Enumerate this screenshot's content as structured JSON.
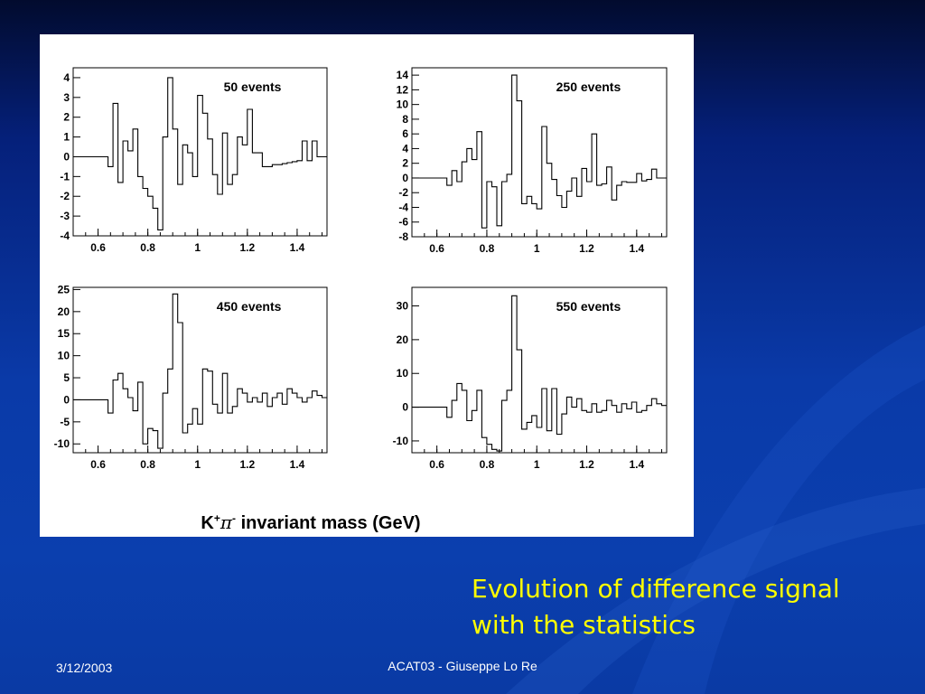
{
  "slide": {
    "caption_line1": "Evolution of difference signal",
    "caption_line2": "with the statistics",
    "footer_date": "3/12/2003",
    "footer_center": "ACAT03 - Giuseppe Lo Re",
    "colors": {
      "background": "#0a3aa8",
      "caption": "#ffff00",
      "footer": "#ffffff",
      "panel": "#ffffff"
    }
  },
  "figure": {
    "xaxis_title": {
      "main": "K",
      "sup1": "+",
      "pi": "π",
      "sup2": "-",
      "rest": " invariant mass (GeV)"
    }
  },
  "chart_data": [
    {
      "type": "line",
      "title": "50 events",
      "xlim": [
        0.5,
        1.52
      ],
      "ylim": [
        -4,
        4.5
      ],
      "xticks": [
        "0.6",
        "0.8",
        "1",
        "1.2",
        "1.4"
      ],
      "yticks": [
        "-4",
        "-3",
        "-2",
        "-1",
        "0",
        "1",
        "2",
        "3",
        "4"
      ],
      "grid": false,
      "x": [
        0.5,
        0.52,
        0.54,
        0.56,
        0.58,
        0.6,
        0.62,
        0.64,
        0.66,
        0.68,
        0.7,
        0.72,
        0.74,
        0.76,
        0.78,
        0.8,
        0.82,
        0.84,
        0.86,
        0.88,
        0.9,
        0.92,
        0.94,
        0.96,
        0.98,
        1.0,
        1.02,
        1.04,
        1.06,
        1.08,
        1.1,
        1.12,
        1.14,
        1.16,
        1.18,
        1.2,
        1.22,
        1.24,
        1.26,
        1.28,
        1.3,
        1.32,
        1.34,
        1.36,
        1.38,
        1.4,
        1.42,
        1.44,
        1.46,
        1.48,
        1.5
      ],
      "values": [
        0,
        0,
        0,
        0,
        0,
        0,
        0,
        -0.5,
        2.7,
        -1.3,
        0.8,
        0.3,
        1.4,
        -1.0,
        -1.6,
        -2.0,
        -2.6,
        -3.7,
        1.0,
        4.0,
        1.4,
        -1.4,
        0.6,
        0.2,
        -1.0,
        3.1,
        2.2,
        0.9,
        -0.9,
        -1.9,
        1.2,
        -1.4,
        -0.9,
        1.0,
        0.6,
        2.4,
        0.2,
        0.2,
        -0.5,
        -0.5,
        -0.4,
        -0.4,
        -0.35,
        -0.3,
        -0.25,
        -0.2,
        0.8,
        -0.2,
        0.8,
        0,
        0
      ]
    },
    {
      "type": "line",
      "title": "250 events",
      "xlim": [
        0.5,
        1.52
      ],
      "ylim": [
        -8,
        15
      ],
      "xticks": [
        "0.6",
        "0.8",
        "1",
        "1.2",
        "1.4"
      ],
      "yticks": [
        "-8",
        "-6",
        "-4",
        "-2",
        "0",
        "2",
        "4",
        "6",
        "8",
        "10",
        "12",
        "14"
      ],
      "grid": false,
      "x": [
        0.5,
        0.52,
        0.54,
        0.56,
        0.58,
        0.6,
        0.62,
        0.64,
        0.66,
        0.68,
        0.7,
        0.72,
        0.74,
        0.76,
        0.78,
        0.8,
        0.82,
        0.84,
        0.86,
        0.88,
        0.9,
        0.92,
        0.94,
        0.96,
        0.98,
        1.0,
        1.02,
        1.04,
        1.06,
        1.08,
        1.1,
        1.12,
        1.14,
        1.16,
        1.18,
        1.2,
        1.22,
        1.24,
        1.26,
        1.28,
        1.3,
        1.32,
        1.34,
        1.36,
        1.38,
        1.4,
        1.42,
        1.44,
        1.46,
        1.48,
        1.5
      ],
      "values": [
        0,
        0,
        0,
        0,
        0,
        0,
        0,
        -1.0,
        1.0,
        -0.5,
        2.2,
        4.0,
        2.5,
        6.3,
        -6.8,
        -0.5,
        -1.2,
        -6.5,
        -0.5,
        0.5,
        14.0,
        10.5,
        -3.5,
        -2.5,
        -3.5,
        -4.2,
        7.0,
        2.0,
        -0.2,
        -2.4,
        -4.0,
        -1.8,
        0,
        -2.5,
        1.3,
        -0.5,
        6.0,
        -1.0,
        -0.8,
        1.5,
        -3.0,
        -1.0,
        -0.5,
        -0.6,
        -0.6,
        0.6,
        -0.4,
        -0.2,
        1.2,
        0,
        0
      ]
    },
    {
      "type": "line",
      "title": "450 events",
      "xlim": [
        0.5,
        1.52
      ],
      "ylim": [
        -12,
        25.5
      ],
      "xticks": [
        "0.6",
        "0.8",
        "1",
        "1.2",
        "1.4"
      ],
      "yticks": [
        "-10",
        "-5",
        "0",
        "5",
        "10",
        "15",
        "20",
        "25"
      ],
      "grid": false,
      "x": [
        0.5,
        0.52,
        0.54,
        0.56,
        0.58,
        0.6,
        0.62,
        0.64,
        0.66,
        0.68,
        0.7,
        0.72,
        0.74,
        0.76,
        0.78,
        0.8,
        0.82,
        0.84,
        0.86,
        0.88,
        0.9,
        0.92,
        0.94,
        0.96,
        0.98,
        1.0,
        1.02,
        1.04,
        1.06,
        1.08,
        1.1,
        1.12,
        1.14,
        1.16,
        1.18,
        1.2,
        1.22,
        1.24,
        1.26,
        1.28,
        1.3,
        1.32,
        1.34,
        1.36,
        1.38,
        1.4,
        1.42,
        1.44,
        1.46,
        1.48,
        1.5
      ],
      "values": [
        0,
        0,
        0,
        0,
        0,
        0,
        0,
        -3.0,
        4.5,
        6.0,
        2.5,
        0.5,
        -2.5,
        4.0,
        -10.0,
        -6.5,
        -7.0,
        -11.0,
        1.5,
        7.0,
        24.0,
        17.5,
        -7.5,
        -5.5,
        -2.0,
        -5.5,
        7.0,
        6.5,
        -1.0,
        -3.0,
        6.0,
        -3.0,
        -1.5,
        2.5,
        1.5,
        -0.5,
        0.5,
        -0.5,
        1.5,
        -1.5,
        0.5,
        1.5,
        -1.0,
        2.5,
        1.5,
        0.5,
        -0.5,
        0.5,
        2.0,
        1.0,
        0.5
      ]
    },
    {
      "type": "line",
      "title": "550 events",
      "xlim": [
        0.5,
        1.52
      ],
      "ylim": [
        -13.5,
        35.5
      ],
      "xticks": [
        "0.6",
        "0.8",
        "1",
        "1.2",
        "1.4"
      ],
      "yticks": [
        "-10",
        "0",
        "10",
        "20",
        "30"
      ],
      "grid": false,
      "x": [
        0.5,
        0.52,
        0.54,
        0.56,
        0.58,
        0.6,
        0.62,
        0.64,
        0.66,
        0.68,
        0.7,
        0.72,
        0.74,
        0.76,
        0.78,
        0.8,
        0.82,
        0.84,
        0.86,
        0.88,
        0.9,
        0.92,
        0.94,
        0.96,
        0.98,
        1.0,
        1.02,
        1.04,
        1.06,
        1.08,
        1.1,
        1.12,
        1.14,
        1.16,
        1.18,
        1.2,
        1.22,
        1.24,
        1.26,
        1.28,
        1.3,
        1.32,
        1.34,
        1.36,
        1.38,
        1.4,
        1.42,
        1.44,
        1.46,
        1.48,
        1.5
      ],
      "values": [
        0,
        0,
        0,
        0,
        0,
        0,
        0,
        -3.0,
        2.0,
        7.0,
        5.0,
        -4.0,
        -1.0,
        5.0,
        -9.0,
        -11.0,
        -12.5,
        -13.0,
        2.0,
        5.0,
        33.0,
        17.0,
        -6.5,
        -4.5,
        -2.5,
        -6.0,
        5.5,
        -7.0,
        5.5,
        -8.0,
        -2.0,
        3.0,
        0,
        2.5,
        -1.0,
        -1.5,
        1.0,
        -1.5,
        -1.0,
        2.0,
        0.5,
        -1.5,
        1.0,
        -0.5,
        1.5,
        -1.5,
        -1.0,
        0.5,
        2.5,
        1.0,
        0.5
      ]
    }
  ]
}
